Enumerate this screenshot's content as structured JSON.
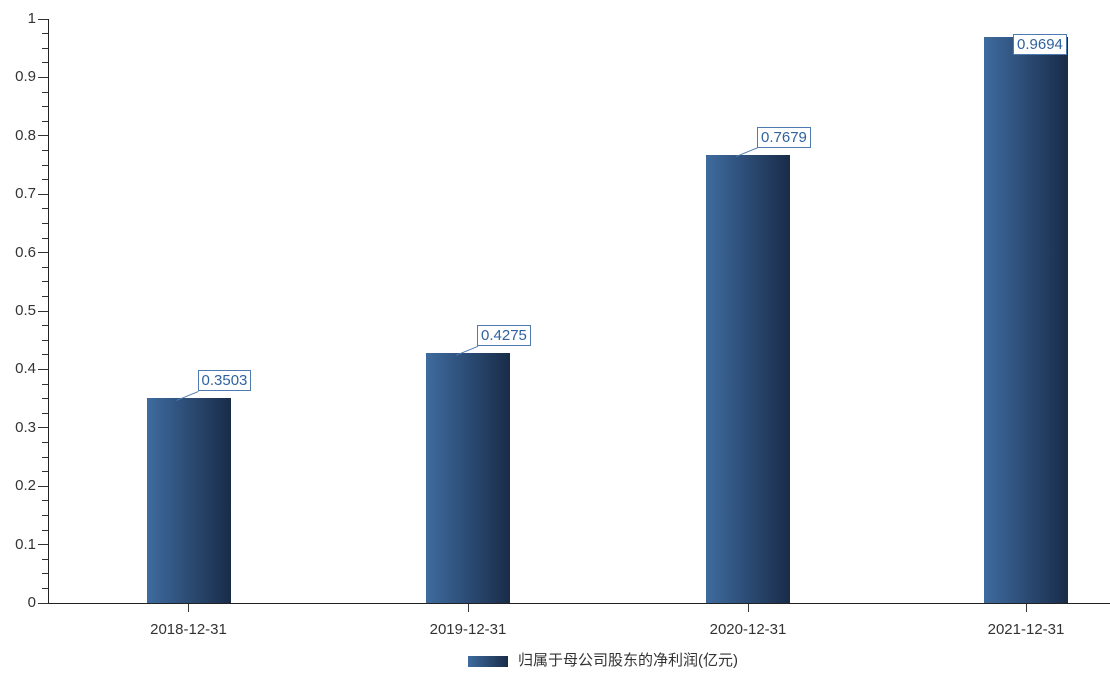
{
  "chart_data": {
    "type": "bar",
    "title": "",
    "xlabel": "",
    "ylabel": "",
    "categories": [
      "2018-12-31",
      "2019-12-31",
      "2020-12-31",
      "2021-12-31"
    ],
    "values": [
      0.3503,
      0.4275,
      0.7679,
      0.9694
    ],
    "data_labels": [
      "0.3503",
      "0.4275",
      "0.7679",
      "0.9694"
    ],
    "legend": "归属于母公司股东的净利润(亿元)",
    "legend_position": "bottom",
    "ylim": [
      0,
      1
    ],
    "y_tick_labels": [
      "0",
      "0.1",
      "0.2",
      "0.3",
      "0.4",
      "0.5",
      "0.6",
      "0.7",
      "0.8",
      "0.9",
      "1"
    ],
    "y_major_step": 0.1,
    "y_minor_step": 0.025,
    "grid": false,
    "colors": {
      "bar_gradient_start": "#3e6b9f",
      "bar_gradient_end": "#192c49",
      "callout_border": "#4e7ab1",
      "callout_text": "#2f629f",
      "axis_line": "#222222",
      "tick_text": "#333333"
    }
  }
}
